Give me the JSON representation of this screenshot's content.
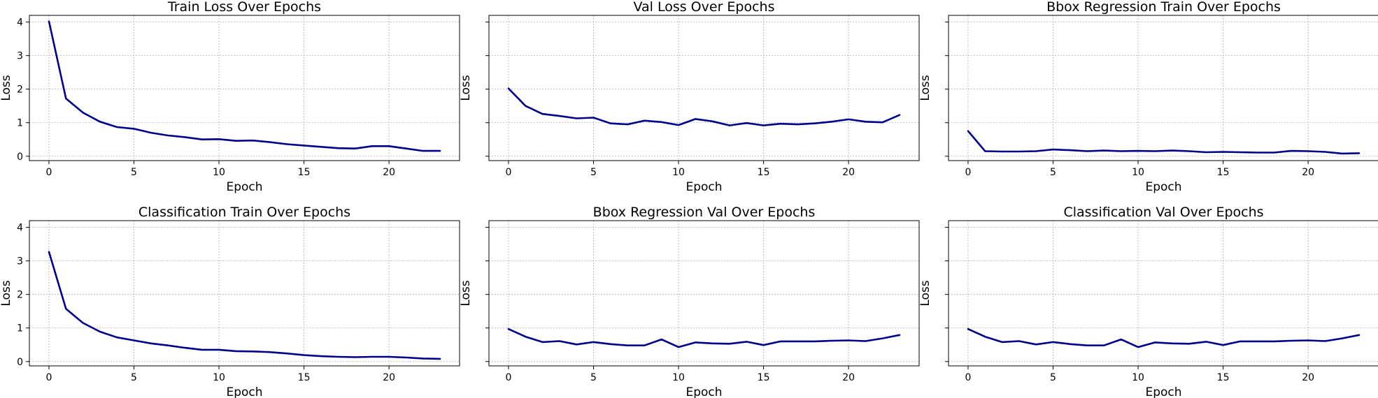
{
  "colors": {
    "line": "#00008b",
    "grid": "#b0b0b0",
    "axis": "#000000",
    "background": "#ffffff"
  },
  "layout": {
    "rows": 2,
    "cols": 3,
    "sharey": true,
    "grid": true,
    "grid_style": "dotted"
  },
  "chart_data": [
    {
      "type": "line",
      "title": "Train Loss Over Epochs",
      "xlabel": "Epoch",
      "ylabel": "Loss",
      "xlim": [
        -1.15,
        24.15
      ],
      "ylim": [
        -0.13,
        4.2
      ],
      "xticks": [
        0,
        5,
        10,
        15,
        20
      ],
      "yticks": [
        0,
        1,
        2,
        3,
        4
      ],
      "show_ytick_labels": true,
      "x": [
        0,
        1,
        2,
        3,
        4,
        5,
        6,
        7,
        8,
        9,
        10,
        11,
        12,
        13,
        14,
        15,
        16,
        17,
        18,
        19,
        20,
        21,
        22,
        23
      ],
      "values": [
        4.02,
        1.72,
        1.3,
        1.03,
        0.87,
        0.82,
        0.7,
        0.62,
        0.57,
        0.5,
        0.51,
        0.46,
        0.47,
        0.42,
        0.36,
        0.32,
        0.28,
        0.24,
        0.23,
        0.3,
        0.3,
        0.23,
        0.16,
        0.16
      ]
    },
    {
      "type": "line",
      "title": "Val Loss Over Epochs",
      "xlabel": "Epoch",
      "ylabel": "Loss",
      "xlim": [
        -1.15,
        24.15
      ],
      "ylim": [
        -0.13,
        4.2
      ],
      "xticks": [
        0,
        5,
        10,
        15,
        20
      ],
      "yticks": [
        0,
        1,
        2,
        3,
        4
      ],
      "show_ytick_labels": false,
      "x": [
        0,
        1,
        2,
        3,
        4,
        5,
        6,
        7,
        8,
        9,
        10,
        11,
        12,
        13,
        14,
        15,
        16,
        17,
        18,
        19,
        20,
        21,
        22,
        23
      ],
      "values": [
        2.02,
        1.5,
        1.26,
        1.2,
        1.13,
        1.15,
        0.98,
        0.95,
        1.06,
        1.02,
        0.93,
        1.11,
        1.04,
        0.92,
        0.99,
        0.92,
        0.97,
        0.95,
        0.98,
        1.03,
        1.1,
        1.03,
        1.01,
        1.23
      ]
    },
    {
      "type": "line",
      "title": "Bbox Regression Train Over Epochs",
      "xlabel": "Epoch",
      "ylabel": "Loss",
      "xlim": [
        -1.15,
        24.15
      ],
      "ylim": [
        -0.13,
        4.2
      ],
      "xticks": [
        0,
        5,
        10,
        15,
        20
      ],
      "yticks": [
        0,
        1,
        2,
        3,
        4
      ],
      "show_ytick_labels": false,
      "x": [
        0,
        1,
        2,
        3,
        4,
        5,
        6,
        7,
        8,
        9,
        10,
        11,
        12,
        13,
        14,
        15,
        16,
        17,
        18,
        19,
        20,
        21,
        22,
        23
      ],
      "values": [
        0.75,
        0.15,
        0.14,
        0.14,
        0.15,
        0.2,
        0.18,
        0.15,
        0.17,
        0.15,
        0.16,
        0.15,
        0.17,
        0.15,
        0.12,
        0.13,
        0.12,
        0.11,
        0.11,
        0.16,
        0.15,
        0.13,
        0.08,
        0.09
      ]
    },
    {
      "type": "line",
      "title": "Classification Train Over Epochs",
      "xlabel": "Epoch",
      "ylabel": "Loss",
      "xlim": [
        -1.15,
        24.15
      ],
      "ylim": [
        -0.13,
        4.2
      ],
      "xticks": [
        0,
        5,
        10,
        15,
        20
      ],
      "yticks": [
        0,
        1,
        2,
        3,
        4
      ],
      "show_ytick_labels": true,
      "x": [
        0,
        1,
        2,
        3,
        4,
        5,
        6,
        7,
        8,
        9,
        10,
        11,
        12,
        13,
        14,
        15,
        16,
        17,
        18,
        19,
        20,
        21,
        22,
        23
      ],
      "values": [
        3.27,
        1.57,
        1.15,
        0.89,
        0.72,
        0.63,
        0.54,
        0.48,
        0.41,
        0.35,
        0.35,
        0.31,
        0.3,
        0.28,
        0.24,
        0.19,
        0.16,
        0.14,
        0.13,
        0.14,
        0.14,
        0.12,
        0.09,
        0.08
      ]
    },
    {
      "type": "line",
      "title": "Bbox Regression Val Over Epochs",
      "xlabel": "Epoch",
      "ylabel": "Loss",
      "xlim": [
        -1.15,
        24.15
      ],
      "ylim": [
        -0.13,
        4.2
      ],
      "xticks": [
        0,
        5,
        10,
        15,
        20
      ],
      "yticks": [
        0,
        1,
        2,
        3,
        4
      ],
      "show_ytick_labels": false,
      "x": [
        0,
        1,
        2,
        3,
        4,
        5,
        6,
        7,
        8,
        9,
        10,
        11,
        12,
        13,
        14,
        15,
        16,
        17,
        18,
        19,
        20,
        21,
        22,
        23
      ],
      "values": [
        0.97,
        0.74,
        0.58,
        0.61,
        0.51,
        0.58,
        0.52,
        0.48,
        0.48,
        0.66,
        0.43,
        0.57,
        0.54,
        0.53,
        0.59,
        0.49,
        0.6,
        0.6,
        0.6,
        0.62,
        0.63,
        0.61,
        0.69,
        0.79
      ]
    },
    {
      "type": "line",
      "title": "Classification Val Over Epochs",
      "xlabel": "Epoch",
      "ylabel": "Loss",
      "xlim": [
        -1.15,
        24.15
      ],
      "ylim": [
        -0.13,
        4.2
      ],
      "xticks": [
        0,
        5,
        10,
        15,
        20
      ],
      "yticks": [
        0,
        1,
        2,
        3,
        4
      ],
      "show_ytick_labels": false,
      "x": [
        0,
        1,
        2,
        3,
        4,
        5,
        6,
        7,
        8,
        9,
        10,
        11,
        12,
        13,
        14,
        15,
        16,
        17,
        18,
        19,
        20,
        21,
        22,
        23
      ],
      "values": [
        0.97,
        0.74,
        0.58,
        0.61,
        0.51,
        0.58,
        0.52,
        0.48,
        0.48,
        0.66,
        0.43,
        0.57,
        0.54,
        0.53,
        0.59,
        0.49,
        0.6,
        0.6,
        0.6,
        0.62,
        0.63,
        0.61,
        0.69,
        0.79
      ]
    }
  ]
}
